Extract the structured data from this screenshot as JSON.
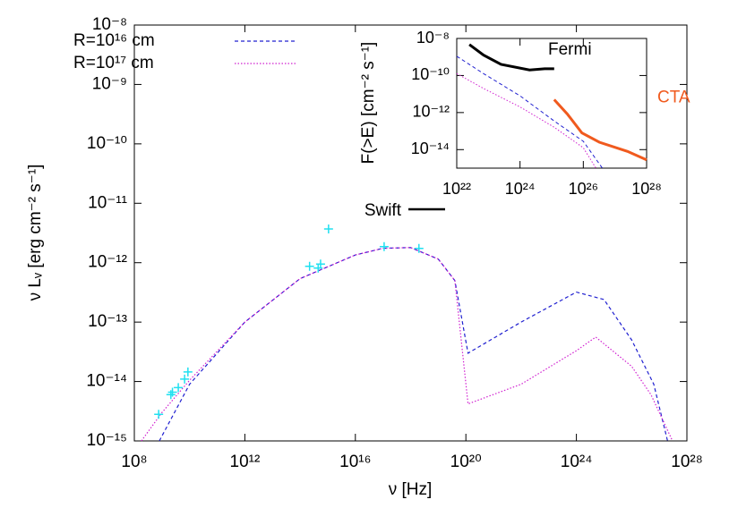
{
  "chart_data": [
    {
      "type": "line",
      "xlabel": "ν [Hz]",
      "ylabel": "ν Lᵥ [erg cm⁻² s⁻¹]",
      "xlog": true,
      "ylog": true,
      "legend": "upper left",
      "xlim": [
        100000000.0,
        1e+28
      ],
      "ylim": [
        1e-15,
        1e-08
      ],
      "xticks": [
        {
          "value": 100000000.0,
          "label": "10⁸"
        },
        {
          "value": 1000000000000.0,
          "label": "10¹²"
        },
        {
          "value": 1e+16,
          "label": "10¹⁶"
        },
        {
          "value": 1e+20,
          "label": "10²⁰"
        },
        {
          "value": 1e+24,
          "label": "10²⁴"
        },
        {
          "value": 1e+28,
          "label": "10²⁸"
        }
      ],
      "yticks": [
        {
          "value": 1e-15,
          "label": "10⁻¹⁵"
        },
        {
          "value": 1e-14,
          "label": "10⁻¹⁴"
        },
        {
          "value": 1e-13,
          "label": "10⁻¹³"
        },
        {
          "value": 1e-12,
          "label": "10⁻¹²"
        },
        {
          "value": 1e-11,
          "label": "10⁻¹¹"
        },
        {
          "value": 1e-10,
          "label": "10⁻¹⁰"
        },
        {
          "value": 1e-09,
          "label": "10⁻⁹"
        },
        {
          "value": 1e-08,
          "label": "10⁻⁸"
        }
      ],
      "series": [
        {
          "name": "R=10¹⁶ cm",
          "color": "#2020d0",
          "dash": "dashed",
          "x": [
            800000000.0,
            10000000000.0,
            1000000000000.0,
            100000000000000.0,
            1e+16,
            1e+17,
            1e+18,
            1e+19,
            4e+19,
            1.2e+20,
            1e+22,
            1e+24,
            1e+25,
            1e+26,
            6.3e+26,
            2e+27
          ],
          "values": [
            1e-15,
            9e-15,
            1e-13,
            5.4e-13,
            1.35e-12,
            1.75e-12,
            1.8e-12,
            1.15e-12,
            5e-13,
            3e-14,
            1e-13,
            3.2e-13,
            2.4e-13,
            5e-14,
            9e-15,
            1e-15
          ]
        },
        {
          "name": "R=10¹⁷ cm",
          "color": "#d020d0",
          "dash": "dotted",
          "x": [
            180000000.0,
            1000000000.0,
            10000000000.0,
            1000000000000.0,
            100000000000000.0,
            1e+16,
            1e+17,
            1e+18,
            1e+19,
            4e+19,
            1.2e+20,
            1e+22,
            1e+24,
            5e+24,
            1e+26,
            5e+26,
            3e+27
          ],
          "values": [
            1e-15,
            3e-15,
            1.05e-14,
            1e-13,
            5.4e-13,
            1.35e-12,
            1.75e-12,
            1.8e-12,
            1.15e-12,
            5e-13,
            4.2e-15,
            9e-15,
            3.3e-14,
            5.6e-14,
            1.8e-14,
            6e-15,
            1e-15
          ]
        }
      ],
      "points": {
        "color": "#20e0f0",
        "x": [
          760000000.0,
          2100000000.0,
          2400000000.0,
          3900000000.0,
          6600000000.0,
          8700000000.0,
          220000000000000.0,
          450000000000000.0,
          550000000000000.0,
          1070000000000000.0,
          1.1e+17,
          2e+18
        ],
        "values": [
          2.8e-15,
          6e-15,
          6.6e-15,
          7.9e-15,
          1.1e-14,
          1.45e-14,
          8.7e-13,
          8.1e-13,
          9.5e-13,
          3.7e-12,
          1.86e-12,
          1.74e-12
        ]
      },
      "annotations": [
        {
          "text": "Swift"
        }
      ]
    },
    {
      "type": "line",
      "ylabel": "F(>E) [cm⁻² s⁻¹]",
      "xlog": true,
      "ylog": true,
      "xlim": [
        1e+22,
        1e+28
      ],
      "ylim": [
        1e-15,
        1e-08
      ],
      "xticks": [
        {
          "value": 1e+22,
          "label": "10²²"
        },
        {
          "value": 1e+24,
          "label": "10²⁴"
        },
        {
          "value": 1e+26,
          "label": "10²⁶"
        },
        {
          "value": 1e+28,
          "label": "10²⁸"
        }
      ],
      "yticks": [
        {
          "value": 1e-14,
          "label": "10⁻¹⁴"
        },
        {
          "value": 1e-12,
          "label": "10⁻¹²"
        },
        {
          "value": 1e-10,
          "label": "10⁻¹⁰"
        },
        {
          "value": 1e-08,
          "label": "10⁻⁸"
        }
      ],
      "series": [
        {
          "name": "Fermi",
          "color": "#000000",
          "dash": "solid",
          "x": [
            2.5e+22,
            7e+22,
            2.5e+23,
            2e+24,
            6e+24,
            1.2e+25
          ],
          "values": [
            4.7e-09,
            1.26e-09,
            4e-10,
            2e-10,
            2.3e-10,
            2.3e-10
          ]
        },
        {
          "name": "CTA",
          "color": "#f05a1e",
          "dash": "solid",
          "x": [
            1.2e+25,
            3.2e+25,
            9e+25,
            3.2e+26,
            2.5e+27,
            1e+28
          ],
          "values": [
            5e-12,
            8e-13,
            8e-14,
            2.5e-14,
            8e-15,
            2.8e-15
          ]
        },
        {
          "color": "#2020d0",
          "dash": "dashed",
          "x": [
            1e+22,
            7e+22,
            1e+24,
            1.2e+25,
            1e+26,
            4e+26
          ],
          "values": [
            1.1e-09,
            1.26e-10,
            8e-12,
            3.5e-13,
            2.8e-14,
            1e-15
          ]
        },
        {
          "color": "#d020d0",
          "dash": "dotted",
          "x": [
            1e+22,
            7e+22,
            1e+24,
            1.2e+25,
            1e+26,
            2.5e+26
          ],
          "values": [
            1.26e-10,
            2e-11,
            2e-12,
            1.6e-13,
            1.26e-14,
            1e-15
          ]
        }
      ]
    }
  ]
}
